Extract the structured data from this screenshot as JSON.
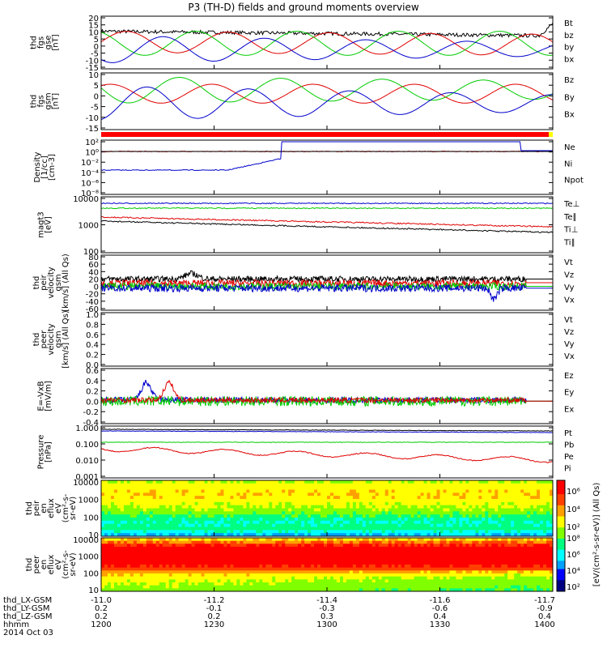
{
  "title": "P3 (TH-D) fields and ground moments overview",
  "colors": {
    "black": "#000000",
    "red": "#e00000",
    "green": "#00cc00",
    "blue": "#0000cc",
    "status_bar": "#ff0000",
    "status_end": "#ffff00"
  },
  "panels": [
    {
      "name": "fgs-gse",
      "ylabel": [
        "thd",
        "fgs",
        "gse",
        "[nT]"
      ],
      "ticks": [
        "20",
        "15",
        "10",
        "5",
        "0",
        "-5",
        "-10",
        "-15"
      ],
      "legend": [
        {
          "text": "Bt",
          "color": "black"
        },
        {
          "text": "bz",
          "color": "red"
        },
        {
          "text": "by",
          "color": "green"
        },
        {
          "text": "bx",
          "color": "blue"
        }
      ]
    },
    {
      "name": "fgs-gsm",
      "ylabel": [
        "thd",
        "fgs",
        "gsm",
        "[nT]"
      ],
      "ticks": [
        "10",
        "5",
        "0",
        "-5",
        "-10",
        "-15"
      ],
      "legend": [
        {
          "text": "Bz",
          "color": "red"
        },
        {
          "text": "By",
          "color": "green"
        },
        {
          "text": "Bx",
          "color": "blue"
        }
      ]
    },
    {
      "name": "density",
      "ylabel": [
        "Density",
        "[1/cc]",
        "[cm-3]"
      ],
      "ticks": [
        "10²",
        "10⁰",
        "10⁻²",
        "10⁻⁴",
        "10⁻⁶",
        "10⁻⁸"
      ],
      "legend": [
        {
          "text": "Ne",
          "color": "red"
        },
        {
          "text": "Ni",
          "color": "black"
        },
        {
          "text": "Npot",
          "color": "blue"
        }
      ]
    },
    {
      "name": "temperature",
      "ylabel": [
        "magt3",
        "[eV]"
      ],
      "ticks": [
        "10000",
        "1000",
        "100"
      ],
      "legend": [
        {
          "text": "Te⊥",
          "color": "red"
        },
        {
          "text": "Te∥",
          "color": "black"
        },
        {
          "text": "Ti⊥",
          "color": "red"
        },
        {
          "text": "Ti∥",
          "color": "green"
        }
      ]
    },
    {
      "name": "peir-velocity",
      "ylabel": [
        "thd",
        "peir",
        "velocity",
        "gsm",
        "[km/s] (All Qs)"
      ],
      "ticks": [
        "80",
        "60",
        "40",
        "20",
        "0",
        "-20",
        "-40",
        "-60"
      ],
      "legend": [
        {
          "text": "Vt",
          "color": "black"
        },
        {
          "text": "Vz",
          "color": "red"
        },
        {
          "text": "Vy",
          "color": "green"
        },
        {
          "text": "Vx",
          "color": "blue"
        }
      ]
    },
    {
      "name": "peer-velocity",
      "ylabel": [
        "thd",
        "peer",
        "velocity",
        "gsm",
        "[km/s] (All Qs)"
      ],
      "ticks": [
        "1.0",
        "0.8",
        "0.6",
        "0.4",
        "0.2",
        "0.0"
      ],
      "legend": [
        {
          "text": "Vt",
          "color": "black"
        },
        {
          "text": "Vz",
          "color": "red"
        },
        {
          "text": "Vy",
          "color": "green"
        },
        {
          "text": "Vx",
          "color": "blue"
        }
      ]
    },
    {
      "name": "efield",
      "ylabel": [
        "E=-VxB",
        "[mV/m]"
      ],
      "ticks": [
        "0.6",
        "0.4",
        "0.2",
        "0.0",
        "-0.2",
        "-0.4"
      ],
      "legend": [
        {
          "text": "Ez",
          "color": "red"
        },
        {
          "text": "Ey",
          "color": "green"
        },
        {
          "text": "Ex",
          "color": "blue"
        }
      ]
    },
    {
      "name": "pressure",
      "ylabel": [
        "Pressure",
        "[nPa]"
      ],
      "ticks": [
        "1.000",
        "0.100",
        "0.010",
        "0.001"
      ],
      "legend": [
        {
          "text": "Pt",
          "color": "black"
        },
        {
          "text": "Pb",
          "color": "red"
        },
        {
          "text": "Pe",
          "color": "green"
        },
        {
          "text": "Pi",
          "color": "blue"
        }
      ]
    },
    {
      "name": "peir-spectrogram",
      "ylabel": [
        "thd",
        "peir",
        "en",
        "eflux",
        "eV",
        "(cm²-s-",
        "sr-eV)"
      ],
      "ticks": [
        "10000",
        "1000",
        "100",
        "10"
      ]
    },
    {
      "name": "peer-spectrogram",
      "ylabel": [
        "thd",
        "peer",
        "en",
        "eflux",
        "eV",
        "(cm²-s-",
        "sr-eV)"
      ],
      "ticks": [
        "10000",
        "1000",
        "100",
        "10"
      ]
    }
  ],
  "colorbar": {
    "label": "[eV/(cm²-s-sr-eV)] (All Qs)",
    "ticks_top": [
      "10⁶",
      "10⁴",
      "10²"
    ],
    "ticks_bottom": [
      "10⁸",
      "10⁶",
      "10⁴",
      "10²"
    ]
  },
  "xaxis": {
    "rows": [
      {
        "label": "thd_LX-GSM",
        "values": [
          "-11.0",
          "-11.2",
          "-11.4",
          "-11.6",
          "-11.7"
        ]
      },
      {
        "label": "thd_LY-GSM",
        "values": [
          "0.2",
          "-0.1",
          "-0.3",
          "-0.6",
          "-0.9"
        ]
      },
      {
        "label": "thd_LZ-GSM",
        "values": [
          "0.2",
          "0.2",
          "0.3",
          "0.4",
          "0.4"
        ]
      },
      {
        "label": "hhmm",
        "values": [
          "1200",
          "1230",
          "1300",
          "1330",
          "1400"
        ]
      }
    ],
    "date": "2014 Oct 03"
  }
}
